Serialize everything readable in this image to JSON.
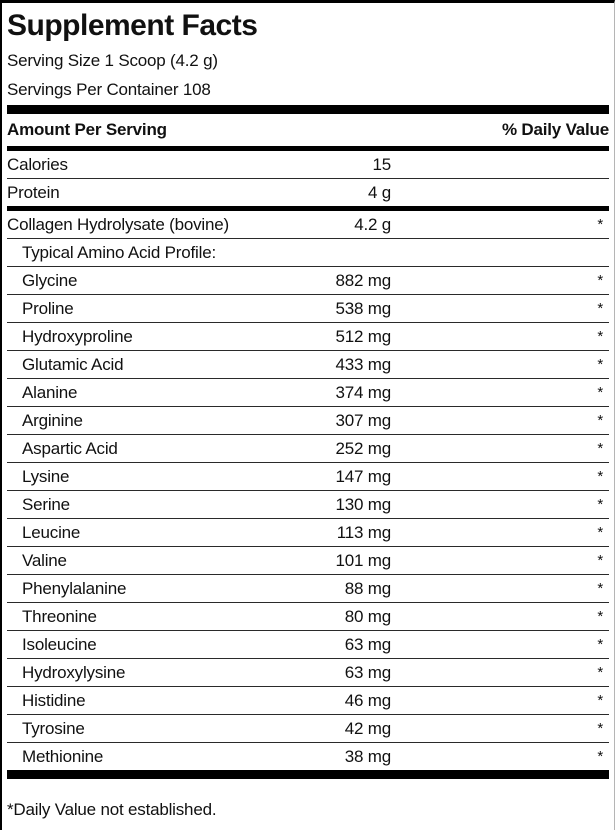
{
  "label": {
    "title": "Supplement Facts",
    "serving_size": "Serving Size 1 Scoop (4.2 g)",
    "servings_per_container": "Servings Per Container 108",
    "columns": {
      "amount_header": "Amount Per Serving",
      "dv_header": "% Daily Value"
    },
    "rows": [
      {
        "name": "Calories",
        "amount": "15",
        "dv": ""
      },
      {
        "name": "Protein",
        "amount": "4 g",
        "dv": ""
      },
      {
        "name": "Collagen Hydrolysate (bovine)",
        "amount": "4.2 g",
        "dv": "*"
      },
      {
        "name": "Typical Amino Acid Profile:",
        "amount": "",
        "dv": ""
      },
      {
        "name": "Glycine",
        "amount": "882 mg",
        "dv": "*"
      },
      {
        "name": "Proline",
        "amount": "538 mg",
        "dv": "*"
      },
      {
        "name": "Hydroxyproline",
        "amount": "512 mg",
        "dv": "*"
      },
      {
        "name": "Glutamic Acid",
        "amount": "433 mg",
        "dv": "*"
      },
      {
        "name": "Alanine",
        "amount": "374 mg",
        "dv": "*"
      },
      {
        "name": "Arginine",
        "amount": "307 mg",
        "dv": "*"
      },
      {
        "name": "Aspartic Acid",
        "amount": "252 mg",
        "dv": "*"
      },
      {
        "name": "Lysine",
        "amount": "147 mg",
        "dv": "*"
      },
      {
        "name": "Serine",
        "amount": "130 mg",
        "dv": "*"
      },
      {
        "name": "Leucine",
        "amount": "113 mg",
        "dv": "*"
      },
      {
        "name": "Valine",
        "amount": "101 mg",
        "dv": "*"
      },
      {
        "name": "Phenylalanine",
        "amount": "88 mg",
        "dv": "*"
      },
      {
        "name": "Threonine",
        "amount": "80 mg",
        "dv": "*"
      },
      {
        "name": "Isoleucine",
        "amount": "63 mg",
        "dv": "*"
      },
      {
        "name": "Hydroxylysine",
        "amount": "63 mg",
        "dv": "*"
      },
      {
        "name": "Histidine",
        "amount": "46 mg",
        "dv": "*"
      },
      {
        "name": "Tyrosine",
        "amount": "42 mg",
        "dv": "*"
      },
      {
        "name": "Methionine",
        "amount": "38 mg",
        "dv": "*"
      }
    ],
    "footnote": "*Daily Value not established.",
    "colors": {
      "text": "#111111",
      "bar": "#000000"
    }
  }
}
